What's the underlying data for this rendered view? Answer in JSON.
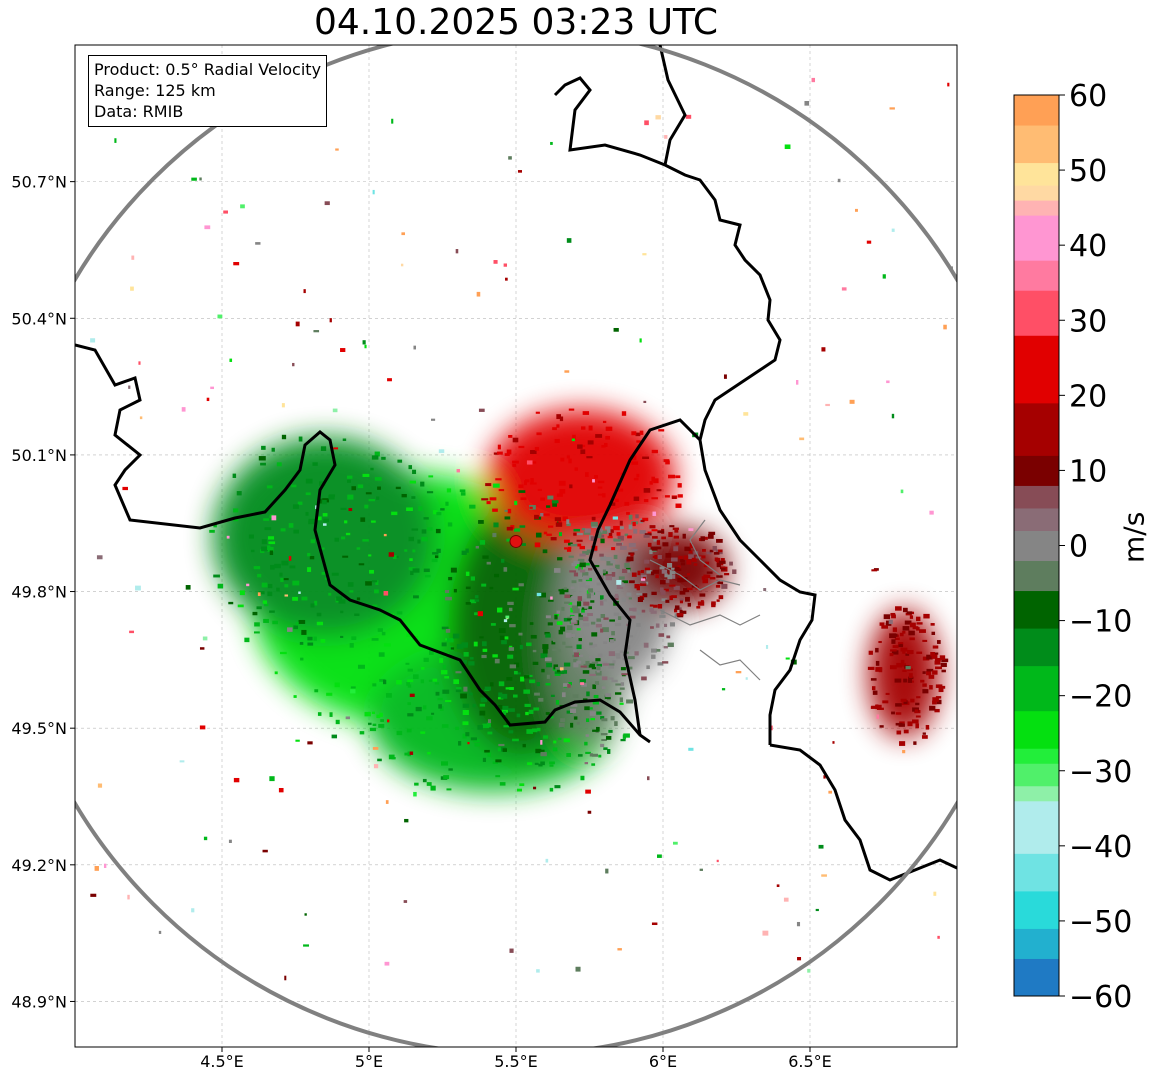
{
  "title": "04.10.2025 03:23 UTC",
  "info_box": {
    "product": "Product: 0.5° Radial Velocity",
    "range": "Range: 125 km",
    "source": "Data: RMIB"
  },
  "chart_data": {
    "type": "heatmap",
    "title": "04.10.2025 03:23 UTC",
    "product": "0.5° Radial Velocity",
    "range_km": 125,
    "source": "RMIB",
    "radar_site": {
      "lon": 5.5,
      "lat": 49.91
    },
    "x_axis": {
      "ticks": [
        4.5,
        5.0,
        5.5,
        6.0,
        6.5
      ],
      "tick_labels": [
        "4.5°E",
        "5°E",
        "5.5°E",
        "6°E",
        "6.5°E"
      ],
      "range": [
        4.0,
        7.0
      ]
    },
    "y_axis": {
      "ticks": [
        48.9,
        49.2,
        49.5,
        49.8,
        50.1,
        50.4,
        50.7
      ],
      "tick_labels": [
        "48.9°N",
        "49.2°N",
        "49.5°N",
        "49.8°N",
        "50.1°N",
        "50.4°N",
        "50.7°N"
      ],
      "range": [
        48.8,
        51.0
      ]
    },
    "grid": true,
    "colorbar": {
      "label": "m/s",
      "range": [
        -60,
        60
      ],
      "ticks": [
        60,
        50,
        40,
        30,
        20,
        10,
        0,
        -10,
        -20,
        -30,
        -40,
        -50,
        -60
      ],
      "tick_labels": [
        "60",
        "50",
        "40",
        "30",
        "20",
        "10",
        "0",
        "−10",
        "−20",
        "−30",
        "−40",
        "−50",
        "−60"
      ],
      "bands": [
        {
          "from": -60,
          "to": -55,
          "color": "#1f7ac4"
        },
        {
          "from": -55,
          "to": -51,
          "color": "#22b0cf"
        },
        {
          "from": -51,
          "to": -46,
          "color": "#29dada"
        },
        {
          "from": -46,
          "to": -41,
          "color": "#6fe3e3"
        },
        {
          "from": -41,
          "to": -34,
          "color": "#b0ecec"
        },
        {
          "from": -34,
          "to": -32,
          "color": "#8ef0a8"
        },
        {
          "from": -32,
          "to": -29,
          "color": "#50f06a"
        },
        {
          "from": -29,
          "to": -27,
          "color": "#22ee3a"
        },
        {
          "from": -27,
          "to": -22,
          "color": "#04e010"
        },
        {
          "from": -22,
          "to": -16,
          "color": "#00b81a"
        },
        {
          "from": -16,
          "to": -11,
          "color": "#008c1a"
        },
        {
          "from": -11,
          "to": -6,
          "color": "#006400"
        },
        {
          "from": -6,
          "to": -2,
          "color": "#5e7d5e"
        },
        {
          "from": -2,
          "to": 2,
          "color": "#858585"
        },
        {
          "from": 2,
          "to": 5,
          "color": "#8a6c76"
        },
        {
          "from": 5,
          "to": 8,
          "color": "#874c56"
        },
        {
          "from": 8,
          "to": 12,
          "color": "#7a0000"
        },
        {
          "from": 12,
          "to": 19,
          "color": "#a50000"
        },
        {
          "from": 19,
          "to": 28,
          "color": "#e10000"
        },
        {
          "from": 28,
          "to": 34,
          "color": "#ff4f66"
        },
        {
          "from": 34,
          "to": 38,
          "color": "#ff7aa0"
        },
        {
          "from": 38,
          "to": 44,
          "color": "#ff96d2"
        },
        {
          "from": 44,
          "to": 46,
          "color": "#ffb3b3"
        },
        {
          "from": 46,
          "to": 48,
          "color": "#ffd9a3"
        },
        {
          "from": 48,
          "to": 51,
          "color": "#ffe49a"
        },
        {
          "from": 51,
          "to": 56,
          "color": "#ffbc73"
        },
        {
          "from": 56,
          "to": 60,
          "color": "#ffa055"
        }
      ]
    },
    "echo_regions": [
      {
        "name": "inbound-main",
        "velocity": -22,
        "lon": 5.15,
        "lat": 49.78,
        "rx": 0.55,
        "ry": 0.28
      },
      {
        "name": "inbound-south",
        "velocity": -18,
        "lon": 5.42,
        "lat": 49.52,
        "rx": 0.42,
        "ry": 0.16
      },
      {
        "name": "inbound-west",
        "velocity": -14,
        "lon": 4.85,
        "lat": 49.92,
        "rx": 0.38,
        "ry": 0.22
      },
      {
        "name": "inbound-core",
        "velocity": -9,
        "lon": 5.52,
        "lat": 49.72,
        "rx": 0.25,
        "ry": 0.28
      },
      {
        "name": "zero-line",
        "velocity": -3,
        "lon": 5.75,
        "lat": 49.7,
        "rx": 0.14,
        "ry": 0.24
      },
      {
        "name": "zero-band",
        "velocity": 2,
        "lon": 5.85,
        "lat": 49.78,
        "rx": 0.18,
        "ry": 0.18
      },
      {
        "name": "outbound-north",
        "velocity": 22,
        "lon": 5.72,
        "lat": 50.05,
        "rx": 0.32,
        "ry": 0.15
      },
      {
        "name": "outbound-east",
        "velocity": 12,
        "lon": 6.05,
        "lat": 49.85,
        "rx": 0.17,
        "ry": 0.09
      },
      {
        "name": "outbound-far-east",
        "velocity": 14,
        "lon": 6.82,
        "lat": 49.62,
        "rx": 0.12,
        "ry": 0.14
      }
    ],
    "range_ring": {
      "center_lon": 5.5,
      "center_lat": 49.91,
      "radius_km": 125
    }
  }
}
